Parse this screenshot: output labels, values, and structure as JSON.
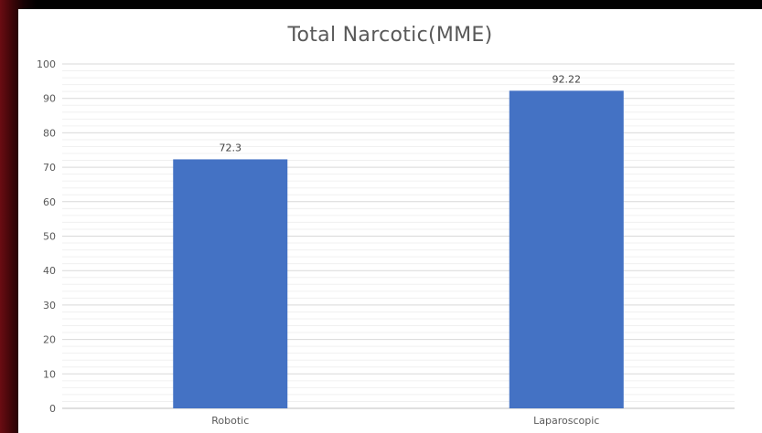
{
  "chart_data": {
    "type": "bar",
    "title": "Total Narcotic(MME)",
    "xlabel": "",
    "ylabel": "",
    "categories": [
      "Robotic",
      "Laparoscopic"
    ],
    "values": [
      72.3,
      92.22
    ],
    "data_labels": [
      "72.3",
      "92.22"
    ],
    "ylim": [
      0,
      100
    ],
    "yticks": [
      0,
      10,
      20,
      30,
      40,
      50,
      60,
      70,
      80,
      90,
      100
    ],
    "grid": "major and minor horizontal",
    "legend": "none",
    "bar_color": "#4472c4"
  }
}
